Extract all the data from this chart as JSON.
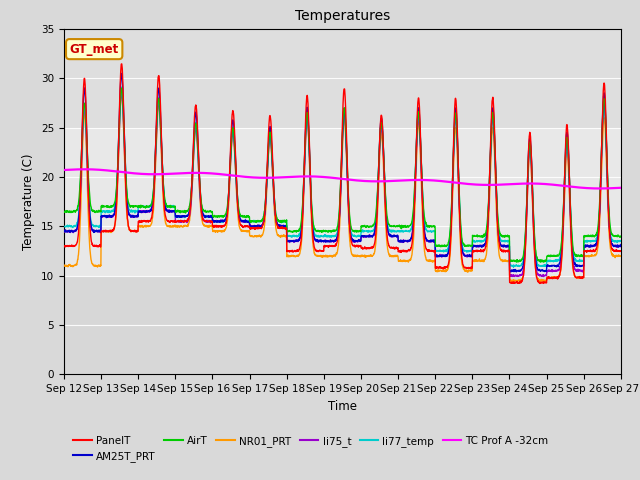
{
  "title": "Temperatures",
  "xlabel": "Time",
  "ylabel": "Temperature (C)",
  "ylim": [
    0,
    35
  ],
  "yticks": [
    0,
    5,
    10,
    15,
    20,
    25,
    30,
    35
  ],
  "date_labels": [
    "Sep 12",
    "Sep 13",
    "Sep 14",
    "Sep 15",
    "Sep 16",
    "Sep 17",
    "Sep 18",
    "Sep 19",
    "Sep 20",
    "Sep 21",
    "Sep 22",
    "Sep 23",
    "Sep 24",
    "Sep 25",
    "Sep 26",
    "Sep 27"
  ],
  "series_colors": {
    "PanelT": "#ff0000",
    "AM25T_PRT": "#0000cc",
    "AirT": "#00cc00",
    "NR01_PRT": "#ff9900",
    "li75_t": "#9900cc",
    "li77_temp": "#00cccc",
    "TC Prof A -32cm": "#ff00ff"
  },
  "legend_label": "GT_met",
  "legend_box_color": "#ffffcc",
  "legend_box_border": "#cc8800",
  "fig_bg_color": "#d9d9d9",
  "plot_bg_color": "#e8e8e8",
  "plot_area_color": "#d0d0d0"
}
